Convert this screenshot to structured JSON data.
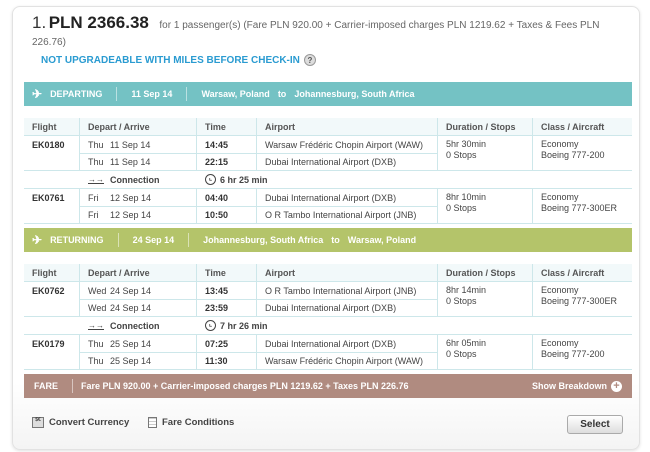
{
  "price": {
    "index": "1.",
    "amount": "PLN 2366.38",
    "description": "for 1 passenger(s) (Fare PLN 920.00 + Carrier-imposed charges PLN 1219.62 + Taxes & Fees PLN 226.76)"
  },
  "upgrade_note": "NOT UPGRADEABLE WITH MILES BEFORE CHECK-IN",
  "columns": [
    "Flight",
    "Depart / Arrive",
    "Time",
    "Airport",
    "Duration / Stops",
    "Class / Aircraft"
  ],
  "departing": {
    "label": "DEPARTING",
    "date": "11 Sep 14",
    "from": "Warsaw, Poland",
    "to_word": "to",
    "to": "Johannesburg, South Africa",
    "flights": [
      {
        "flight": "EK0180",
        "legs": [
          {
            "day": "Thu",
            "date": "11 Sep 14",
            "time": "14:45",
            "airport": "Warsaw Frédéric Chopin Airport (WAW)"
          },
          {
            "day": "Thu",
            "date": "11 Sep 14",
            "time": "22:15",
            "airport": "Dubai International Airport (DXB)"
          }
        ],
        "duration": "5hr 30min",
        "stops": "0 Stops",
        "class": "Economy",
        "aircraft": "Boeing 777-200"
      },
      {
        "flight": "EK0761",
        "legs": [
          {
            "day": "Fri",
            "date": "12 Sep 14",
            "time": "04:40",
            "airport": "Dubai International Airport (DXB)"
          },
          {
            "day": "Fri",
            "date": "12 Sep 14",
            "time": "10:50",
            "airport": "O R Tambo International Airport (JNB)"
          }
        ],
        "duration": "8hr 10min",
        "stops": "0 Stops",
        "class": "Economy",
        "aircraft": "Boeing 777-300ER"
      }
    ],
    "connection": {
      "label": "Connection",
      "time": "6 hr 25 min"
    }
  },
  "returning": {
    "label": "RETURNING",
    "date": "24 Sep 14",
    "from": "Johannesburg, South Africa",
    "to_word": "to",
    "to": "Warsaw, Poland",
    "flights": [
      {
        "flight": "EK0762",
        "legs": [
          {
            "day": "Wed",
            "date": "24 Sep 14",
            "time": "13:45",
            "airport": "O R Tambo International Airport (JNB)"
          },
          {
            "day": "Wed",
            "date": "24 Sep 14",
            "time": "23:59",
            "airport": "Dubai International Airport (DXB)"
          }
        ],
        "duration": "8hr 14min",
        "stops": "0 Stops",
        "class": "Economy",
        "aircraft": "Boeing 777-300ER"
      },
      {
        "flight": "EK0179",
        "legs": [
          {
            "day": "Thu",
            "date": "25 Sep 14",
            "time": "07:25",
            "airport": "Dubai International Airport (DXB)"
          },
          {
            "day": "Thu",
            "date": "25 Sep 14",
            "time": "11:30",
            "airport": "Warsaw Frédéric Chopin Airport (WAW)"
          }
        ],
        "duration": "6hr 05min",
        "stops": "0 Stops",
        "class": "Economy",
        "aircraft": "Boeing 777-200"
      }
    ],
    "connection": {
      "label": "Connection",
      "time": "7 hr 26 min"
    }
  },
  "fare": {
    "label": "FARE",
    "summary": "Fare PLN 920.00 + Carrier-imposed charges PLN 1219.62 + Taxes PLN 226.76",
    "breakdown": "Show Breakdown"
  },
  "footer": {
    "convert": "Convert Currency",
    "conditions": "Fare Conditions",
    "select": "Select"
  },
  "colors": {
    "departing": "#74c2c4",
    "returning": "#b4c46a",
    "fare": "#b08b80",
    "link": "#2a9bd1"
  }
}
